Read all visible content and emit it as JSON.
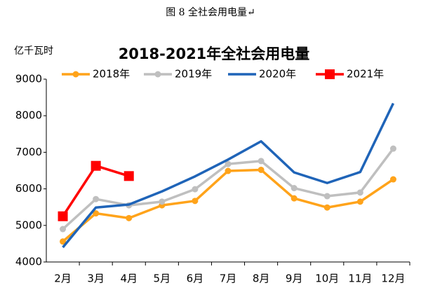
{
  "caption": "图 8 全社会用电量↵",
  "chart_data": {
    "type": "line",
    "title": "2018-2021年全社会用电量",
    "y_label": "亿千瓦时",
    "categories": [
      "2月",
      "3月",
      "4月",
      "5月",
      "6月",
      "7月",
      "8月",
      "9月",
      "10月",
      "11月",
      "12月"
    ],
    "series": [
      {
        "name": "2018年",
        "color": "#ffa31a",
        "marker": "circle",
        "values": [
          4560,
          5330,
          5200,
          5550,
          5670,
          6490,
          6520,
          5740,
          5490,
          5650,
          6260
        ]
      },
      {
        "name": "2019年",
        "color": "#bfbfbf",
        "marker": "circle",
        "values": [
          4900,
          5720,
          5550,
          5650,
          5990,
          6680,
          6760,
          6020,
          5800,
          5900,
          7100
        ]
      },
      {
        "name": "2020年",
        "color": "#1f64b8",
        "marker": "none",
        "values": [
          4400,
          5490,
          5570,
          5930,
          6340,
          6800,
          7300,
          6450,
          6160,
          6460,
          8340
        ]
      },
      {
        "name": "2021年",
        "color": "#ff0000",
        "marker": "square",
        "values": [
          5250,
          6630,
          6350,
          null,
          null,
          null,
          null,
          null,
          null,
          null,
          null
        ]
      }
    ],
    "ylim": [
      4000,
      9000
    ],
    "yticks": [
      4000,
      5000,
      6000,
      7000,
      8000,
      9000
    ],
    "grid": false,
    "legend": "top"
  }
}
